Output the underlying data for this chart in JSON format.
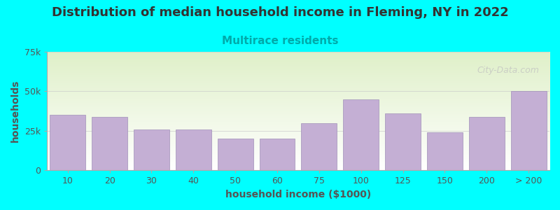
{
  "title": "Distribution of median household income in Fleming, NY in 2022",
  "subtitle": "Multirace residents",
  "xlabel": "household income ($1000)",
  "ylabel": "households",
  "background_color": "#00FFFF",
  "plot_bg_top": "#e8f5d0",
  "plot_bg_bottom": "#ffffff",
  "bar_color": "#c4afd4",
  "bar_edge_color": "#a090b8",
  "categories": [
    "10",
    "20",
    "30",
    "40",
    "50",
    "60",
    "75",
    "100",
    "125",
    "150",
    "200",
    "> 200"
  ],
  "values": [
    35000,
    34000,
    26000,
    26000,
    20000,
    20000,
    30000,
    45000,
    36000,
    24000,
    34000,
    50000
  ],
  "ylim": [
    0,
    75000
  ],
  "yticks": [
    0,
    25000,
    50000,
    75000
  ],
  "ytick_labels": [
    "0",
    "25k",
    "50k",
    "75k"
  ],
  "title_fontsize": 13,
  "subtitle_fontsize": 11,
  "axis_label_fontsize": 10,
  "tick_fontsize": 9,
  "watermark_text": "City-Data.com",
  "title_color": "#333333",
  "subtitle_color": "#00AAAA",
  "axis_label_color": "#555555",
  "tick_color": "#555555"
}
